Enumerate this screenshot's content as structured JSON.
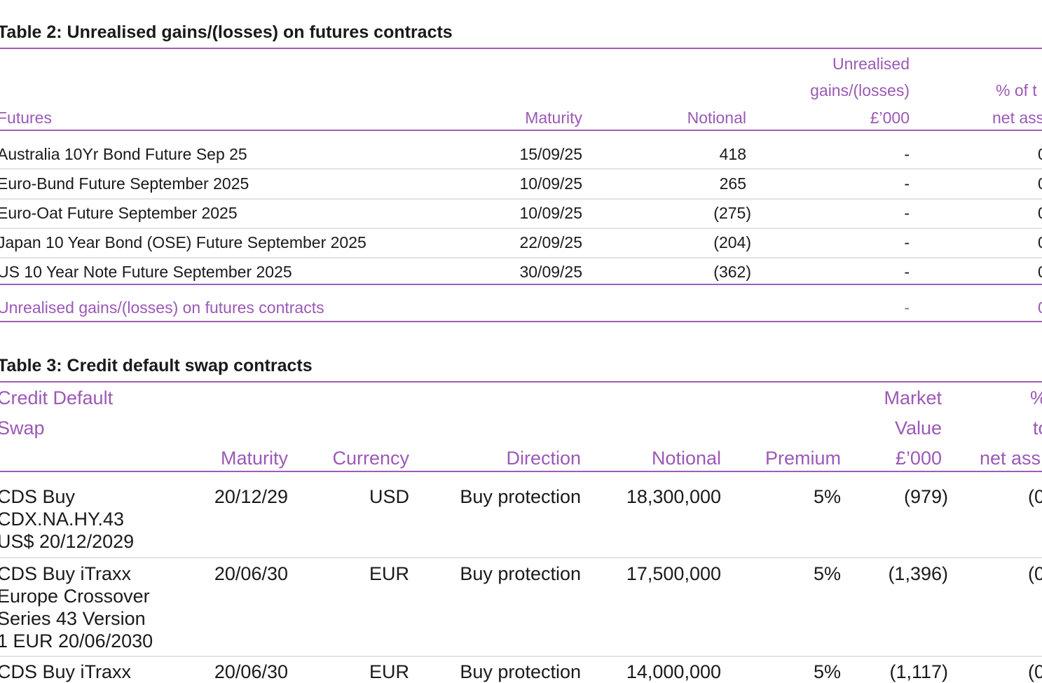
{
  "table2": {
    "title": "Table 2: Unrealised gains/(losses) on futures contracts",
    "headers": {
      "futures": "Futures",
      "maturity": "Maturity",
      "notional": "Notional",
      "unrealised_1": "Unrealised",
      "unrealised_2": "gains/(losses)",
      "unrealised_3": "£’000",
      "pct_1": "% of t",
      "pct_2": "net ass"
    },
    "rows": [
      {
        "name": "Australia 10Yr Bond Future Sep 25",
        "maturity": "15/09/25",
        "notional": "418",
        "unrealised": "-",
        "pct": "0"
      },
      {
        "name": "Euro-Bund Future September 2025",
        "maturity": "10/09/25",
        "notional": "265",
        "unrealised": "-",
        "pct": "0"
      },
      {
        "name": "Euro-Oat Future September 2025",
        "maturity": "10/09/25",
        "notional": "(275)",
        "unrealised": "-",
        "pct": "0"
      },
      {
        "name": "Japan 10 Year Bond (OSE) Future September 2025",
        "maturity": "22/09/25",
        "notional": "(204)",
        "unrealised": "-",
        "pct": "0"
      },
      {
        "name": "US 10 Year Note Future September 2025",
        "maturity": "30/09/25",
        "notional": "(362)",
        "unrealised": "-",
        "pct": "0"
      }
    ],
    "total": {
      "label": "Unrealised gains/(losses) on futures contracts",
      "unrealised": "-",
      "pct": "0"
    }
  },
  "table3": {
    "title": "Table 3: Credit default swap contracts",
    "headers": {
      "cds_1": "Credit Default",
      "cds_2": "Swap",
      "maturity": "Maturity",
      "currency": "Currency",
      "direction": "Direction",
      "notional": "Notional",
      "premium": "Premium",
      "mv_1": "Market",
      "mv_2": "Value",
      "mv_3": "£’000",
      "pct_1": "%",
      "pct_2": "to",
      "pct_3": "net ass"
    },
    "rows": [
      {
        "name_lines": [
          "CDS Buy",
          "CDX.NA.HY.43",
          "US$ 20/12/2029"
        ],
        "maturity": "20/12/29",
        "currency": "USD",
        "direction": "Buy protection",
        "notional": "18,300,000",
        "premium": "5%",
        "market_value": "(979)",
        "pct": "(0"
      },
      {
        "name_lines": [
          "CDS Buy iTraxx",
          "Europe Crossover",
          "Series 43 Version",
          "1 EUR 20/06/2030"
        ],
        "maturity": "20/06/30",
        "currency": "EUR",
        "direction": "Buy protection",
        "notional": "17,500,000",
        "premium": "5%",
        "market_value": "(1,396)",
        "pct": "(0"
      },
      {
        "name_lines": [
          "CDS Buy iTraxx"
        ],
        "maturity": "20/06/30",
        "currency": "EUR",
        "direction": "Buy protection",
        "notional": "14,000,000",
        "premium": "5%",
        "market_value": "(1,117)",
        "pct": "(0"
      }
    ]
  }
}
